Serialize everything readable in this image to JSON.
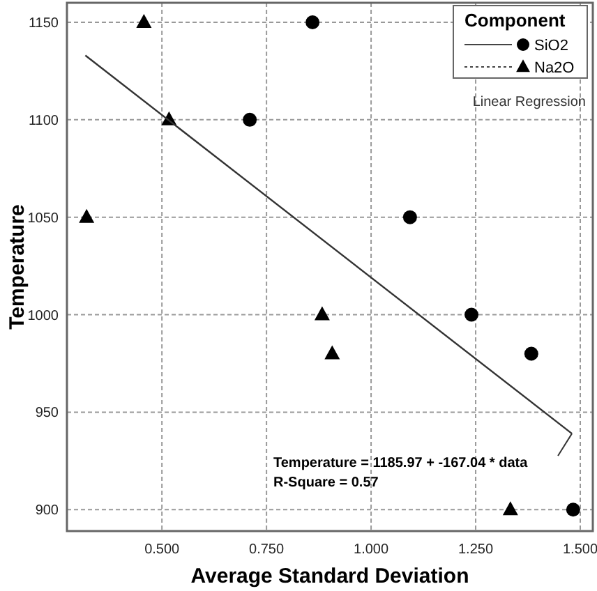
{
  "chart_data": {
    "type": "scatter",
    "xlabel": "Average Standard Deviation",
    "ylabel": "Temperature",
    "legend_title": "Component",
    "xlim": [
      0.273,
      1.53
    ],
    "ylim": [
      889,
      1160
    ],
    "xticks": [
      {
        "value": 0.5,
        "label": "0.500"
      },
      {
        "value": 0.75,
        "label": "0.750"
      },
      {
        "value": 1,
        "label": "1.000"
      },
      {
        "value": 1.25,
        "label": "1.250"
      },
      {
        "value": 1.5,
        "label": "1.500"
      }
    ],
    "yticks": [
      900,
      950,
      1000,
      1050,
      1100,
      1150
    ],
    "grid": true,
    "legend": "top right",
    "series": [
      {
        "name": "SiO2",
        "color": "#000000",
        "marker": "circle",
        "line_style": "solid",
        "x": [
          0.71,
          0.86,
          1.093,
          1.24,
          1.383,
          1.483
        ],
        "values": [
          1100,
          1150,
          1050,
          1000,
          980,
          900
        ]
      },
      {
        "name": "Na2O",
        "color": "#000000",
        "marker": "triangle",
        "line_style": "dotted",
        "x": [
          0.32,
          0.457,
          0.517,
          0.883,
          0.907,
          1.333
        ],
        "values": [
          1050,
          1150,
          1100,
          1000,
          980,
          900
        ]
      },
      {
        "type": "line",
        "color": "#333333",
        "marker": "none",
        "x": [
          0.317,
          1.48
        ],
        "values": [
          1133,
          939
        ]
      }
    ],
    "annotations": [
      "Linear Regression",
      "Temperature = 1185.97 + -167.04 * data",
      "R-Square = 0.57"
    ]
  }
}
